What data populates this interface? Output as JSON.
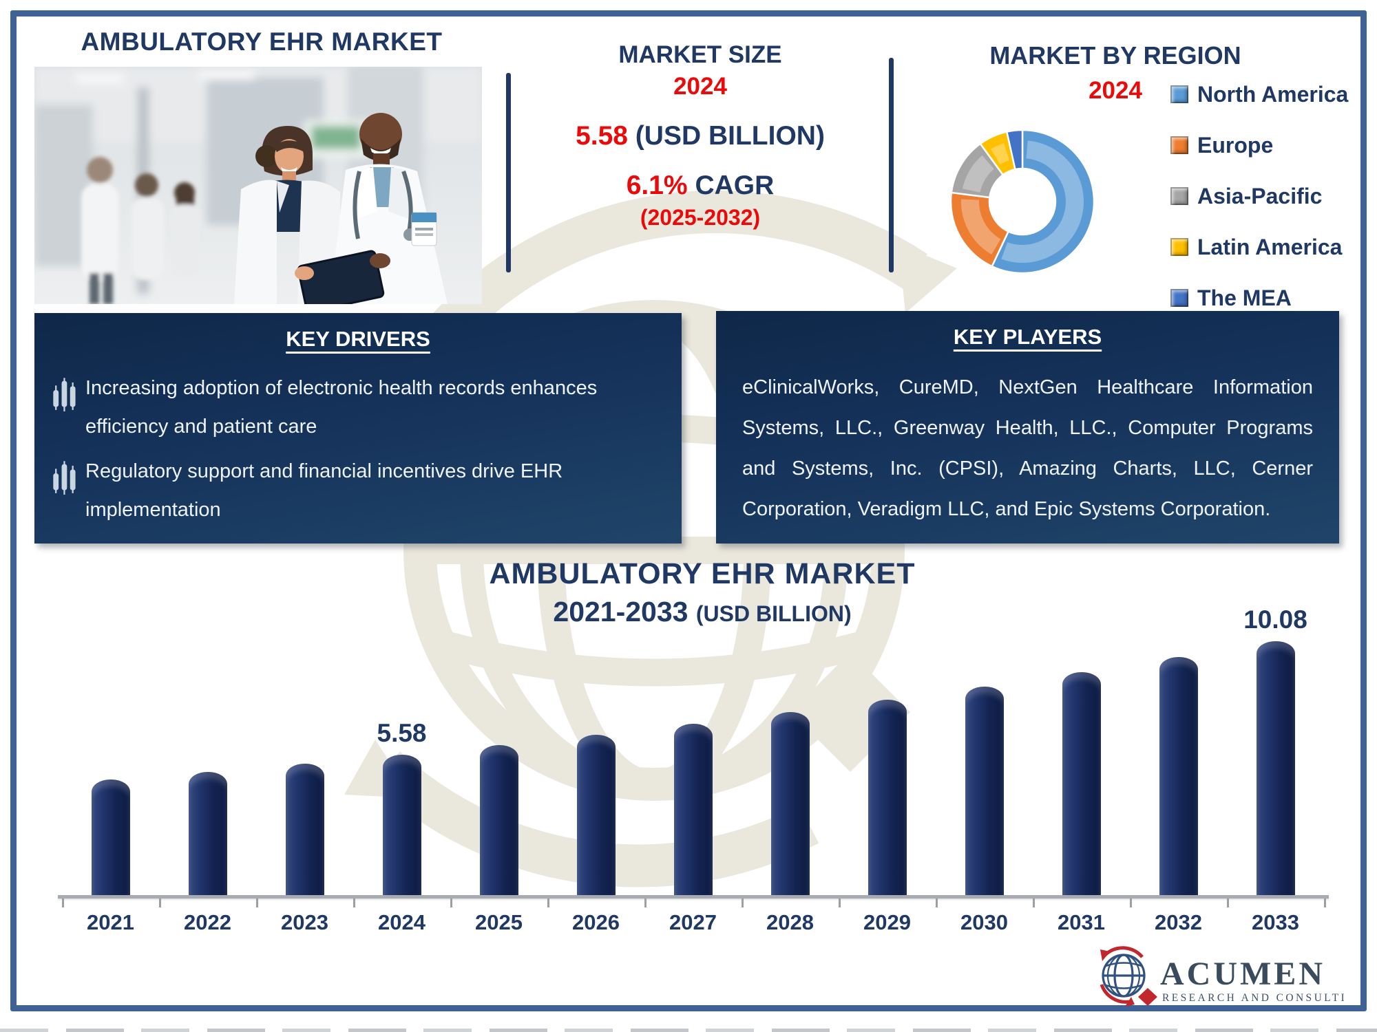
{
  "page": {
    "main_title": "AMBULATORY EHR MARKET"
  },
  "market_size": {
    "heading": "MARKET SIZE",
    "year": "2024",
    "value": "5.58",
    "unit": " (USD BILLION)",
    "cagr": "6.1%",
    "cagr_label": " CAGR",
    "period": "(2025-2032)"
  },
  "market_by_region": {
    "heading": "MARKET BY REGION",
    "year": "2024"
  },
  "key_drivers": {
    "heading": "KEY DRIVERS",
    "items": [
      "Increasing adoption of electronic health records enhances efficiency and patient care",
      "Regulatory support and financial incentives drive EHR implementation"
    ]
  },
  "key_players": {
    "heading": "KEY PLAYERS",
    "text": "eClinicalWorks, CureMD, NextGen Healthcare Information Systems, LLC., Greenway Health, LLC., Computer Programs and Systems, Inc. (CPSI), Amazing Charts, LLC, Cerner Corporation, Veradigm LLC, and Epic Systems Corporation."
  },
  "bottom_chart": {
    "title": "AMBULATORY EHR MARKET",
    "subtitle_range": "2021-2033 ",
    "subtitle_unit": "(USD BILLION)"
  },
  "logo": {
    "brand": "ACUMEN",
    "tagline": "RESEARCH AND CONSULTING"
  },
  "colors": {
    "navy_text": "#1F3864",
    "red_accent": "#EA0A0A",
    "panel_navy_top": "#0F2849",
    "panel_navy_bottom": "#204569",
    "bar_navy": "#16295B",
    "frame_blue": "#3E6295",
    "axis_gray": "#A8ACB2",
    "watermark_beige": "#EAE7DC"
  },
  "chart_data": [
    {
      "type": "pie",
      "title": "MARKET BY REGION 2024",
      "labels": [
        "North America",
        "Europe",
        "Asia-Pacific",
        "Latin America",
        "The MEA"
      ],
      "values_pct_estimated": [
        57,
        20,
        13,
        6.5,
        3.5
      ],
      "colors": [
        "#5B9BD5",
        "#ED7D31",
        "#A5A5A5",
        "#FFC000",
        "#4472C4"
      ],
      "legend_position": "right",
      "note": "donut; share values not printed in image, estimated from arc lengths"
    },
    {
      "type": "bar",
      "title": "AMBULATORY EHR MARKET 2021-2033 (USD BILLION)",
      "categories": [
        "2021",
        "2022",
        "2023",
        "2024",
        "2025",
        "2026",
        "2027",
        "2028",
        "2029",
        "2030",
        "2031",
        "2032",
        "2033"
      ],
      "values": [
        4.58,
        4.89,
        5.22,
        5.58,
        5.96,
        6.37,
        6.8,
        7.26,
        7.75,
        8.28,
        8.84,
        9.44,
        10.08
      ],
      "value_labels": {
        "2024": "5.58",
        "2033": "10.08"
      },
      "xlabel": "",
      "ylabel": "USD Billion",
      "ylim": [
        0,
        10.8
      ],
      "grid": false,
      "legend_position": "none",
      "note": "only 2024 (5.58) and 2033 (10.08) are labeled in image; other values estimated from bar heights"
    }
  ]
}
